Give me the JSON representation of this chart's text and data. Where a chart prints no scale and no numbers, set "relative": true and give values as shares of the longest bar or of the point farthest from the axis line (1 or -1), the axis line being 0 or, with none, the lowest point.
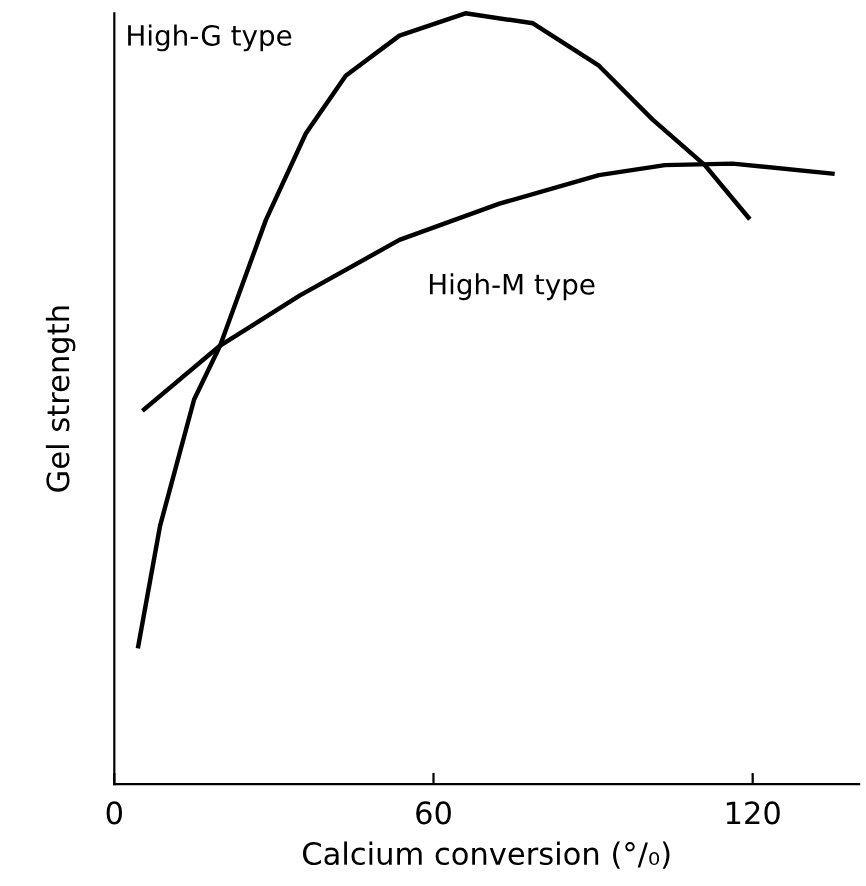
{
  "chart_data": {
    "type": "line",
    "relative": true,
    "xlabel": "Calcium conversion (°/₀)",
    "ylabel": "Gel strength",
    "xlim": [
      0,
      140
    ],
    "xticks": [
      0,
      60,
      120
    ],
    "legend": false,
    "grid": false,
    "marker": "none",
    "line_style": "solid",
    "series": [
      {
        "name": "High-G type",
        "color": "#000000",
        "x": [
          4.5,
          8.6,
          15.0,
          19.9,
          28.5,
          36.0,
          43.5,
          53.6,
          66.0,
          78.7,
          91.1,
          101.2,
          111.0,
          119.2
        ],
        "values": [
          0.179,
          0.335,
          0.499,
          0.569,
          0.732,
          0.844,
          0.919,
          0.971,
          1.0,
          0.987,
          0.932,
          0.862,
          0.803,
          0.735
        ]
      },
      {
        "name": "High-M type",
        "color": "#000000",
        "x": [
          5.6,
          19.9,
          34.9,
          53.6,
          72.4,
          91.1,
          103.5,
          116.2,
          135.0
        ],
        "values": [
          0.486,
          0.569,
          0.634,
          0.706,
          0.753,
          0.79,
          0.803,
          0.805,
          0.792
        ]
      }
    ]
  }
}
